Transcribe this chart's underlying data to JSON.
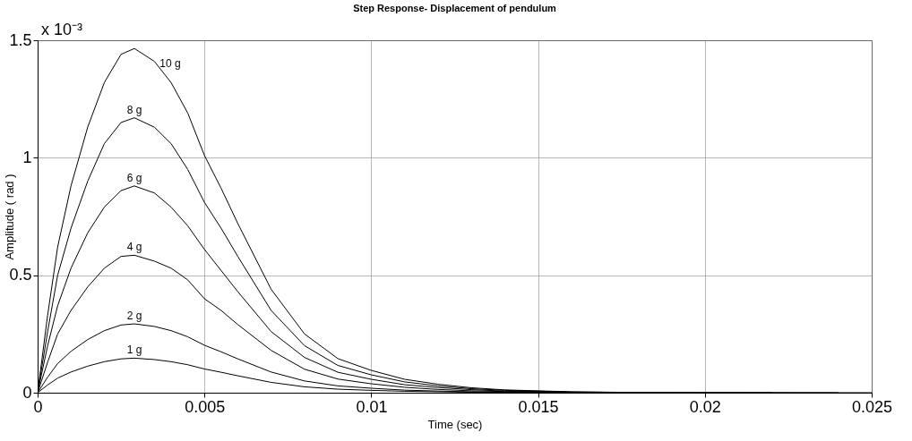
{
  "chart_data": {
    "type": "line",
    "title": "Step Response- Displacement of pendulum",
    "xlabel": "Time (sec)",
    "ylabel": "Amplitude ( rad )",
    "annotations": [
      "x 10⁻³"
    ],
    "series": [
      {
        "name": "10 g",
        "color": "#000000",
        "x": [
          0,
          0.0003,
          0.0006,
          0.001,
          0.0015,
          0.002,
          0.0025,
          0.0029,
          0.0035,
          0.004,
          0.0045,
          0.005,
          0.0055,
          0.006,
          0.007,
          0.008,
          0.009,
          0.01,
          0.011,
          0.012,
          0.013,
          0.014,
          0.016,
          0.018,
          0.02,
          0.025
        ],
        "values": [
          0,
          0.33,
          0.62,
          0.88,
          1.13,
          1.32,
          1.44,
          1.465,
          1.41,
          1.32,
          1.19,
          1.01,
          0.87,
          0.72,
          0.44,
          0.25,
          0.145,
          0.095,
          0.057,
          0.036,
          0.021,
          0.012,
          0.004,
          0.001,
          0,
          0
        ]
      },
      {
        "name": "8 g",
        "color": "#000000",
        "x": [
          0,
          0.0003,
          0.0006,
          0.001,
          0.0015,
          0.002,
          0.0025,
          0.0029,
          0.0035,
          0.004,
          0.0045,
          0.005,
          0.0055,
          0.006,
          0.007,
          0.008,
          0.009,
          0.01,
          0.011,
          0.012,
          0.013,
          0.014,
          0.016,
          0.018,
          0.024
        ],
        "values": [
          0,
          0.26,
          0.5,
          0.7,
          0.9,
          1.06,
          1.15,
          1.17,
          1.13,
          1.06,
          0.95,
          0.81,
          0.7,
          0.58,
          0.35,
          0.2,
          0.116,
          0.076,
          0.046,
          0.029,
          0.017,
          0.01,
          0.003,
          0.001,
          0
        ]
      },
      {
        "name": "6 g",
        "color": "#000000",
        "x": [
          0,
          0.0003,
          0.0006,
          0.001,
          0.0015,
          0.002,
          0.0025,
          0.0029,
          0.0035,
          0.004,
          0.0045,
          0.005,
          0.0055,
          0.006,
          0.007,
          0.008,
          0.009,
          0.01,
          0.011,
          0.012,
          0.013,
          0.014,
          0.016,
          0.018,
          0.022
        ],
        "values": [
          0,
          0.2,
          0.37,
          0.53,
          0.68,
          0.79,
          0.86,
          0.88,
          0.85,
          0.79,
          0.71,
          0.61,
          0.52,
          0.43,
          0.26,
          0.15,
          0.087,
          0.057,
          0.034,
          0.022,
          0.013,
          0.007,
          0.002,
          0.001,
          0
        ]
      },
      {
        "name": "4 g",
        "color": "#000000",
        "x": [
          0,
          0.0003,
          0.0006,
          0.001,
          0.0015,
          0.002,
          0.0025,
          0.0029,
          0.0035,
          0.004,
          0.0045,
          0.005,
          0.0055,
          0.006,
          0.007,
          0.008,
          0.009,
          0.01,
          0.011,
          0.012,
          0.013,
          0.014,
          0.016,
          0.02
        ],
        "values": [
          0,
          0.13,
          0.25,
          0.35,
          0.45,
          0.53,
          0.58,
          0.585,
          0.56,
          0.53,
          0.48,
          0.4,
          0.35,
          0.29,
          0.18,
          0.1,
          0.058,
          0.038,
          0.023,
          0.014,
          0.008,
          0.005,
          0.002,
          0
        ]
      },
      {
        "name": "2 g",
        "color": "#000000",
        "x": [
          0,
          0.0003,
          0.0006,
          0.001,
          0.0015,
          0.002,
          0.0025,
          0.0029,
          0.0035,
          0.004,
          0.0045,
          0.005,
          0.0055,
          0.006,
          0.007,
          0.008,
          0.009,
          0.01,
          0.011,
          0.012,
          0.013,
          0.014,
          0.016,
          0.018
        ],
        "values": [
          0,
          0.066,
          0.124,
          0.176,
          0.226,
          0.264,
          0.288,
          0.293,
          0.282,
          0.264,
          0.238,
          0.202,
          0.174,
          0.144,
          0.088,
          0.05,
          0.029,
          0.019,
          0.011,
          0.007,
          0.004,
          0.002,
          0.001,
          0
        ]
      },
      {
        "name": "1 g",
        "color": "#000000",
        "x": [
          0,
          0.0003,
          0.0006,
          0.001,
          0.0015,
          0.002,
          0.0025,
          0.0029,
          0.0035,
          0.004,
          0.0045,
          0.005,
          0.0055,
          0.006,
          0.007,
          0.008,
          0.009,
          0.01,
          0.011,
          0.012,
          0.013,
          0.014,
          0.016
        ],
        "values": [
          0,
          0.033,
          0.062,
          0.088,
          0.113,
          0.132,
          0.144,
          0.147,
          0.141,
          0.132,
          0.119,
          0.101,
          0.087,
          0.072,
          0.044,
          0.025,
          0.015,
          0.01,
          0.006,
          0.004,
          0.002,
          0.001,
          0
        ]
      }
    ],
    "xlim": [
      0,
      0.025
    ],
    "xticks": [
      0,
      0.005,
      0.01,
      0.015,
      0.02,
      0.025
    ],
    "ylim": [
      0,
      1.5
    ],
    "yticks": [
      0,
      0.5,
      1,
      1.5
    ],
    "grid": true,
    "legend": false,
    "marker": "none",
    "line_style": "solid"
  }
}
